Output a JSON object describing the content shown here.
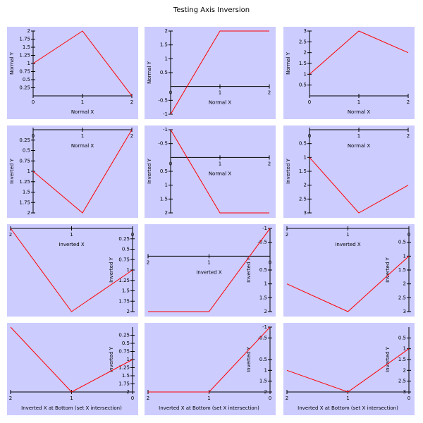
{
  "title": "Testing Axis Inversion",
  "chart_data": [
    {
      "type": "line",
      "xlabel": "Normal X",
      "ylabel": "Normal Y",
      "x": [
        0,
        1,
        2
      ],
      "values": [
        1,
        2,
        0
      ],
      "color": "#ff0000",
      "xlim": [
        0,
        2
      ],
      "ylim": [
        0,
        2
      ],
      "xticks": [
        0,
        1,
        2
      ],
      "yticks": [
        0.25,
        0.5,
        0.75,
        1,
        1.25,
        1.5,
        1.75,
        2
      ],
      "x_inverted": false,
      "y_inverted": false,
      "x_axis_position": "zero"
    },
    {
      "type": "line",
      "xlabel": "Normal X",
      "ylabel": "Normal Y",
      "x": [
        0,
        1,
        2
      ],
      "values": [
        -1,
        2,
        2
      ],
      "color": "#ff0000",
      "xlim": [
        0,
        2
      ],
      "ylim": [
        -1,
        2
      ],
      "xticks": [
        0,
        1,
        2
      ],
      "yticks": [
        -1,
        -0.5,
        0.5,
        1,
        1.5,
        2
      ],
      "x_inverted": false,
      "y_inverted": false,
      "x_axis_position": "zero"
    },
    {
      "type": "line",
      "xlabel": "Normal X",
      "ylabel": "Normal Y",
      "x": [
        0,
        1,
        2
      ],
      "values": [
        1,
        3,
        2
      ],
      "color": "#ff0000",
      "xlim": [
        0,
        2
      ],
      "ylim": [
        0,
        3
      ],
      "xticks": [
        0,
        1,
        2
      ],
      "yticks": [
        0.5,
        1,
        1.5,
        2,
        2.5,
        3
      ],
      "x_inverted": false,
      "y_inverted": false,
      "x_axis_position": "zero"
    },
    {
      "type": "line",
      "xlabel": "Normal X",
      "ylabel": "Inverted Y",
      "x": [
        0,
        1,
        2
      ],
      "values": [
        1,
        2,
        0
      ],
      "color": "#ff0000",
      "xlim": [
        0,
        2
      ],
      "ylim": [
        0,
        2
      ],
      "xticks": [
        0,
        1,
        2
      ],
      "yticks": [
        0.25,
        0.5,
        0.75,
        1,
        1.25,
        1.5,
        1.75,
        2
      ],
      "x_inverted": false,
      "y_inverted": true,
      "x_axis_position": "zero"
    },
    {
      "type": "line",
      "xlabel": "Normal X",
      "ylabel": "Inverted Y",
      "x": [
        0,
        1,
        2
      ],
      "values": [
        -1,
        2,
        2
      ],
      "color": "#ff0000",
      "xlim": [
        0,
        2
      ],
      "ylim": [
        -1,
        2
      ],
      "xticks": [
        0,
        1,
        2
      ],
      "yticks": [
        -1,
        -0.5,
        0.5,
        1,
        1.5,
        2
      ],
      "x_inverted": false,
      "y_inverted": true,
      "x_axis_position": "zero"
    },
    {
      "type": "line",
      "xlabel": "Normal X",
      "ylabel": "Inverted Y",
      "x": [
        0,
        1,
        2
      ],
      "values": [
        1,
        3,
        2
      ],
      "color": "#ff0000",
      "xlim": [
        0,
        2
      ],
      "ylim": [
        0,
        3
      ],
      "xticks": [
        0,
        1,
        2
      ],
      "yticks": [
        0.5,
        1,
        1.5,
        2,
        2.5,
        3
      ],
      "x_inverted": false,
      "y_inverted": true,
      "x_axis_position": "zero"
    },
    {
      "type": "line",
      "xlabel": "Inverted X",
      "ylabel": "Inverted Y",
      "x": [
        0,
        1,
        2
      ],
      "values": [
        1,
        2,
        0
      ],
      "color": "#ff0000",
      "xlim": [
        0,
        2
      ],
      "ylim": [
        0,
        2
      ],
      "xticks": [
        0,
        1,
        2
      ],
      "yticks": [
        0.25,
        0.5,
        0.75,
        1,
        1.25,
        1.5,
        1.75,
        2
      ],
      "x_inverted": true,
      "y_inverted": true,
      "x_axis_position": "zero"
    },
    {
      "type": "line",
      "xlabel": "Inverted X",
      "ylabel": "Inverted Y",
      "x": [
        0,
        1,
        2
      ],
      "values": [
        -1,
        2,
        2
      ],
      "color": "#ff0000",
      "xlim": [
        0,
        2
      ],
      "ylim": [
        -1,
        2
      ],
      "xticks": [
        0,
        1,
        2
      ],
      "yticks": [
        -1,
        -0.5,
        0.5,
        1,
        1.5,
        2
      ],
      "x_inverted": true,
      "y_inverted": true,
      "x_axis_position": "zero"
    },
    {
      "type": "line",
      "xlabel": "Inverted X",
      "ylabel": "Inverted Y",
      "x": [
        0,
        1,
        2
      ],
      "values": [
        1,
        3,
        2
      ],
      "color": "#ff0000",
      "xlim": [
        0,
        2
      ],
      "ylim": [
        0,
        3
      ],
      "xticks": [
        0,
        1,
        2
      ],
      "yticks": [
        0.5,
        1,
        1.5,
        2,
        2.5,
        3
      ],
      "x_inverted": true,
      "y_inverted": true,
      "x_axis_position": "zero"
    },
    {
      "type": "line",
      "xlabel": "Inverted X at Bottom (set X intersection)",
      "ylabel": "Inverted Y",
      "x": [
        0,
        1,
        2
      ],
      "values": [
        1,
        2,
        0
      ],
      "color": "#ff0000",
      "xlim": [
        0,
        2
      ],
      "ylim": [
        0,
        2
      ],
      "xticks": [
        0,
        1,
        2
      ],
      "yticks": [
        0.25,
        0.5,
        0.75,
        1,
        1.25,
        1.5,
        1.75,
        2
      ],
      "x_inverted": true,
      "y_inverted": true,
      "x_axis_position": "bottom"
    },
    {
      "type": "line",
      "xlabel": "Inverted X at Bottom (set X intersection)",
      "ylabel": "Inverted Y",
      "x": [
        0,
        1,
        2
      ],
      "values": [
        -1,
        2,
        2
      ],
      "color": "#ff0000",
      "xlim": [
        0,
        2
      ],
      "ylim": [
        -1,
        2
      ],
      "xticks": [
        0,
        1,
        2
      ],
      "yticks": [
        -1,
        -0.5,
        0.5,
        1,
        1.5,
        2
      ],
      "x_inverted": true,
      "y_inverted": true,
      "x_axis_position": "bottom"
    },
    {
      "type": "line",
      "xlabel": "Inverted X at Bottom (set X intersection)",
      "ylabel": "Inverted Y",
      "x": [
        0,
        1,
        2
      ],
      "values": [
        1,
        3,
        2
      ],
      "color": "#ff0000",
      "xlim": [
        0,
        2
      ],
      "ylim": [
        0,
        3
      ],
      "xticks": [
        0,
        1,
        2
      ],
      "yticks": [
        0.5,
        1,
        1.5,
        2,
        2.5,
        3
      ],
      "x_inverted": true,
      "y_inverted": true,
      "x_axis_position": "bottom"
    }
  ]
}
